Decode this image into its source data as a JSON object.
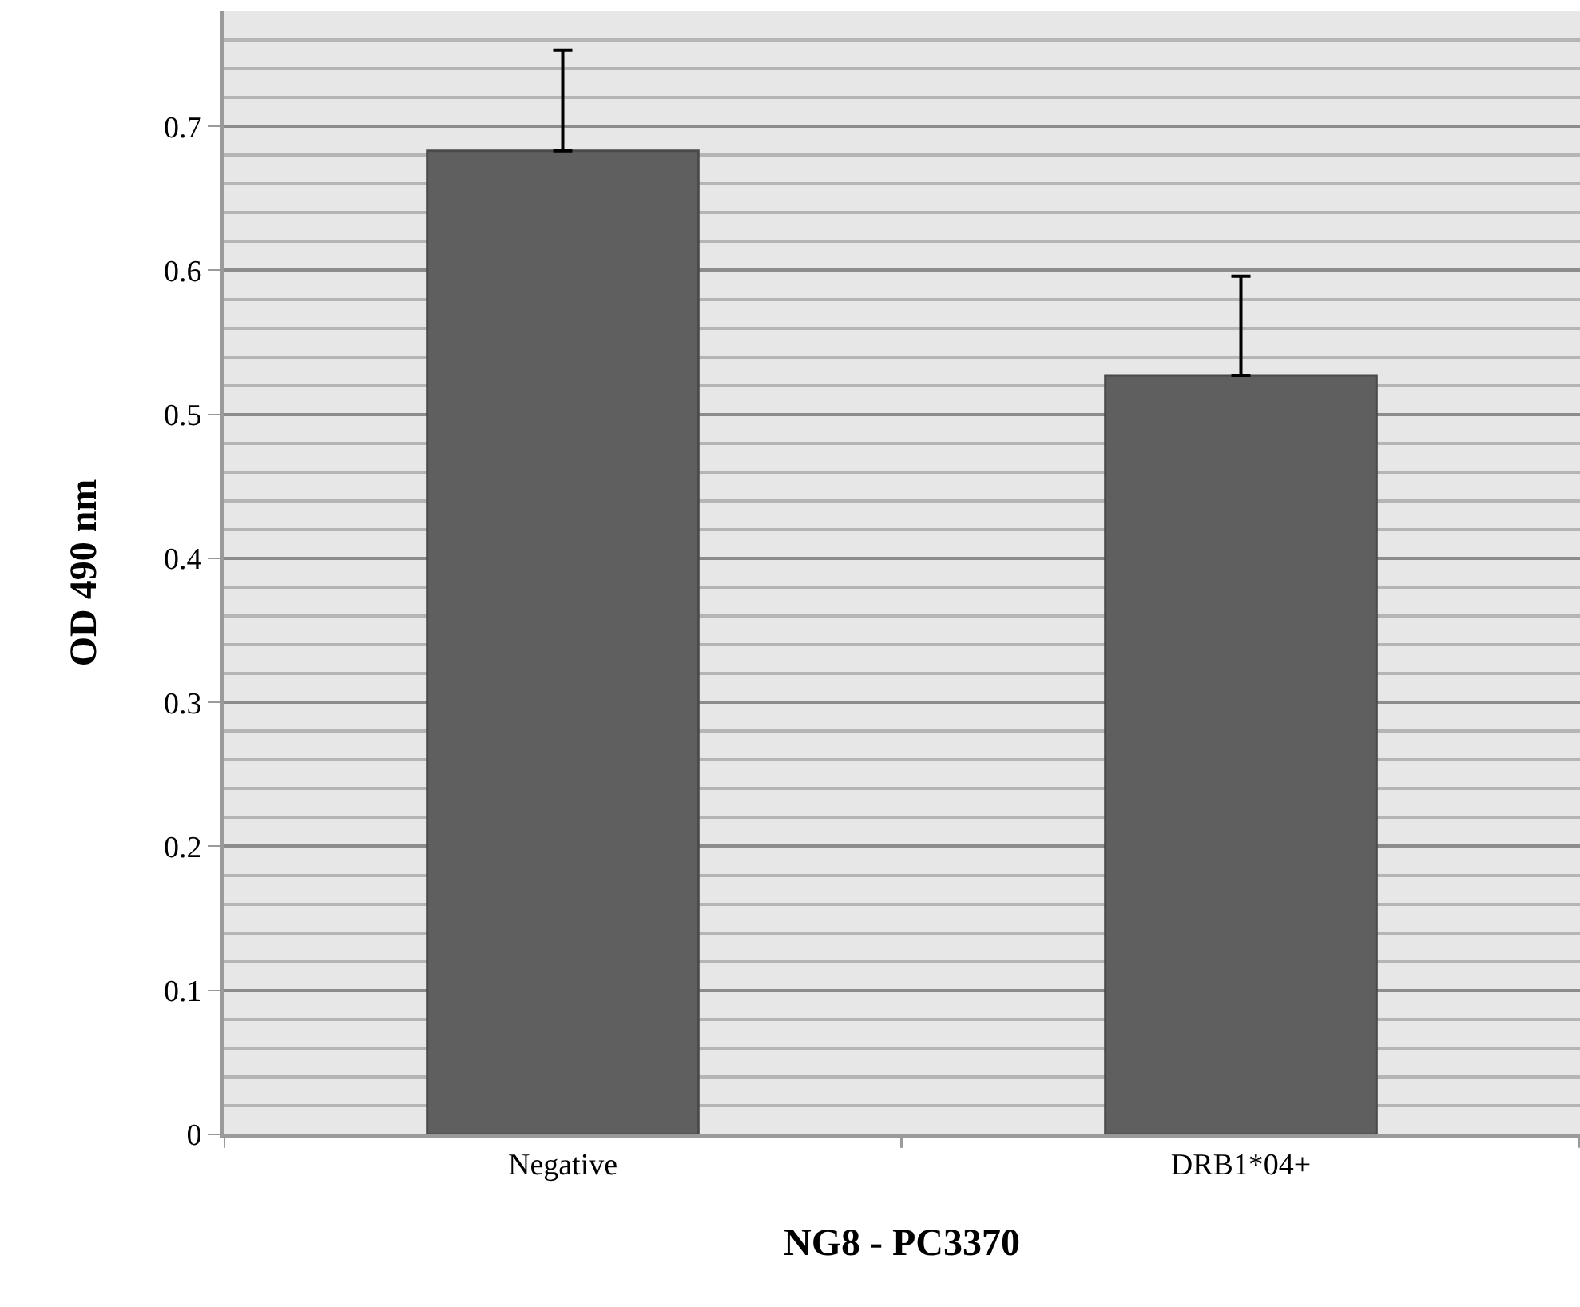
{
  "chart_data": {
    "type": "bar",
    "categories": [
      "Negative",
      "DRB1*04+"
    ],
    "values": [
      0.683,
      0.527
    ],
    "errors": [
      0.07,
      0.069
    ],
    "color": "#5f5f5f",
    "xlabel": "NG8 - PC3370",
    "ylabel": "OD 490 nm",
    "ylim": [
      0,
      0.78
    ],
    "yticks": [
      0,
      0.1,
      0.2,
      0.3,
      0.4,
      0.5,
      0.6,
      0.7,
      {
        "value": 0.02,
        "label": null
      },
      {
        "value": 0.04,
        "label": null
      },
      {
        "value": 0.06,
        "label": null
      },
      {
        "value": 0.08,
        "label": null
      },
      {
        "value": 0.12,
        "label": null
      },
      {
        "value": 0.14,
        "label": null
      },
      {
        "value": 0.16,
        "label": null
      },
      {
        "value": 0.18,
        "label": null
      },
      {
        "value": 0.22,
        "label": null
      },
      {
        "value": 0.24,
        "label": null
      },
      {
        "value": 0.26,
        "label": null
      },
      {
        "value": 0.28,
        "label": null
      },
      {
        "value": 0.32,
        "label": null
      },
      {
        "value": 0.34,
        "label": null
      },
      {
        "value": 0.36,
        "label": null
      },
      {
        "value": 0.38,
        "label": null
      },
      {
        "value": 0.42,
        "label": null
      },
      {
        "value": 0.44,
        "label": null
      },
      {
        "value": 0.46,
        "label": null
      },
      {
        "value": 0.48,
        "label": null
      },
      {
        "value": 0.52,
        "label": null
      },
      {
        "value": 0.54,
        "label": null
      },
      {
        "value": 0.56,
        "label": null
      },
      {
        "value": 0.58,
        "label": null
      },
      {
        "value": 0.62,
        "label": null
      },
      {
        "value": 0.64,
        "label": null
      },
      {
        "value": 0.66,
        "label": null
      },
      {
        "value": 0.68,
        "label": null
      },
      {
        "value": 0.72,
        "label": null
      },
      {
        "value": 0.74,
        "label": null
      },
      {
        "value": 0.76,
        "label": null
      },
      {
        "value": 0.78,
        "label": null
      }
    ],
    "grid": true
  }
}
